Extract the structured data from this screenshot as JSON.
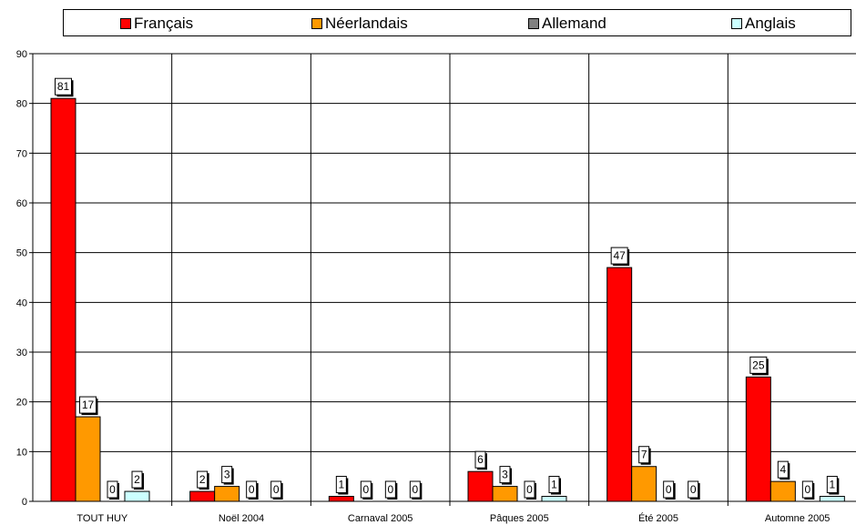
{
  "chart_data": {
    "type": "bar",
    "title": "",
    "xlabel": "",
    "ylabel": "",
    "ylim": [
      0,
      90
    ],
    "yticks": [
      0,
      10,
      20,
      30,
      40,
      50,
      60,
      70,
      80,
      90
    ],
    "grid": true,
    "legend_position": "top",
    "categories": [
      "TOUT HUY",
      "Noël 2004",
      "Carnaval 2005",
      "Pâques 2005",
      "Été 2005",
      "Automne 2005"
    ],
    "series": [
      {
        "name": "Français",
        "color": "#ff0000",
        "values": [
          81,
          2,
          1,
          6,
          47,
          25
        ]
      },
      {
        "name": "Néerlandais",
        "color": "#ff9900",
        "values": [
          17,
          3,
          0,
          3,
          7,
          4
        ]
      },
      {
        "name": "Allemand",
        "color": "#808080",
        "values": [
          0,
          0,
          0,
          0,
          0,
          0
        ]
      },
      {
        "name": "Anglais",
        "color": "#ccffff",
        "values": [
          2,
          0,
          0,
          1,
          0,
          1
        ]
      }
    ]
  }
}
